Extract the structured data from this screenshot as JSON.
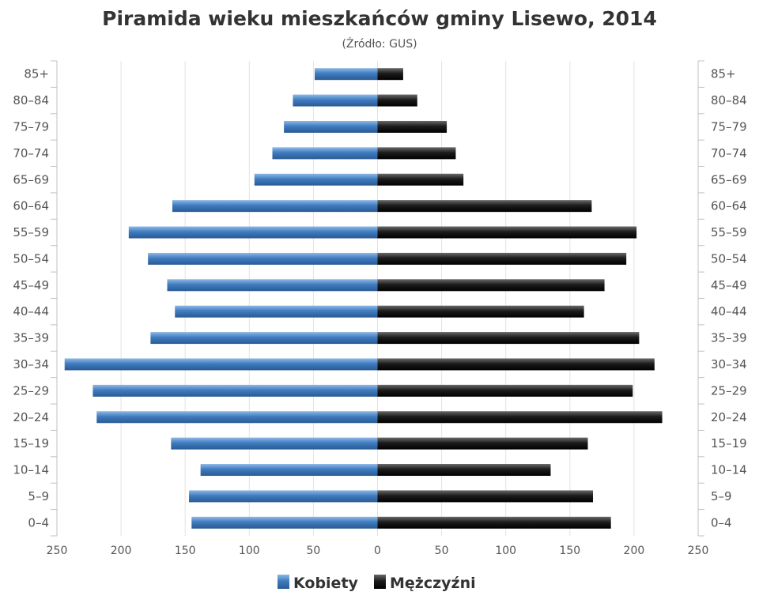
{
  "chart_data": {
    "type": "bar",
    "orientation": "horizontal",
    "title": "Piramida wieku mieszkańców gminy Lisewo, 2014",
    "subtitle": "(Źródło: GUS)",
    "categories": [
      "0–4",
      "5–9",
      "10–14",
      "15–19",
      "20–24",
      "25–29",
      "30–34",
      "35–39",
      "40–44",
      "45–49",
      "50–54",
      "55–59",
      "60–64",
      "65–69",
      "70–74",
      "75–79",
      "80–84",
      "85+"
    ],
    "series": [
      {
        "name": "Kobiety",
        "side": "left",
        "color": "#3a74b4",
        "values": [
          145,
          147,
          138,
          161,
          219,
          222,
          244,
          177,
          158,
          164,
          179,
          194,
          160,
          96,
          82,
          73,
          66,
          49
        ]
      },
      {
        "name": "Mężczyźni",
        "side": "right",
        "color": "#1a1a1a",
        "values": [
          182,
          168,
          135,
          164,
          222,
          199,
          216,
          204,
          161,
          177,
          194,
          202,
          167,
          67,
          61,
          54,
          31,
          20
        ]
      }
    ],
    "x_ticks": [
      "250",
      "200",
      "150",
      "100",
      "50",
      "0",
      "50",
      "100",
      "150",
      "200",
      "250"
    ],
    "xlim": [
      -250,
      250
    ],
    "grid": true,
    "legend_position": "bottom-center"
  }
}
